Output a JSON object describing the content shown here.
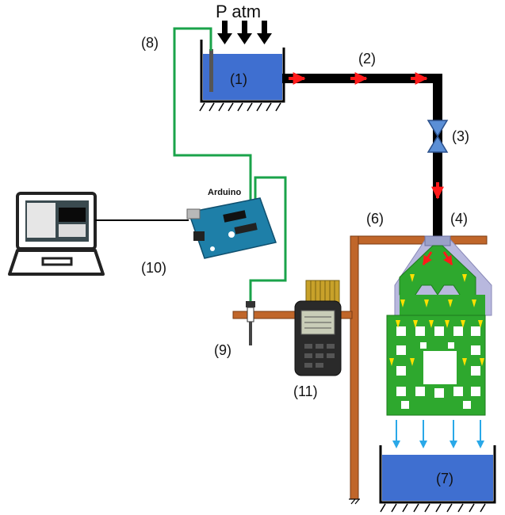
{
  "labels": {
    "patm": "P atm",
    "n1": "(1)",
    "n2": "(2)",
    "n3": "(3)",
    "n4": "(4)",
    "n6": "(6)",
    "n7": "(7)",
    "n8": "(8)",
    "n9": "(9)",
    "n10": "(10)",
    "n11": "(11)",
    "arduino": "Arduino"
  },
  "colors": {
    "water": "#3f6fd0",
    "pipe": "#000000",
    "flow_red": "#ff1a1a",
    "wire_green": "#1aa34a",
    "frame_copper": "#c0662a",
    "network_green": "#2ea82e",
    "manifold_lavender": "#b8b8de",
    "arrow_yellow": "#ffe000",
    "arrow_blue": "#29a8e8"
  },
  "icons": {
    "laptop": "laptop-icon",
    "arduino_board": "arduino-board-icon",
    "data_logger": "data-logger-icon",
    "valve": "valve-icon",
    "sensor_probe": "temperature-probe-icon"
  }
}
